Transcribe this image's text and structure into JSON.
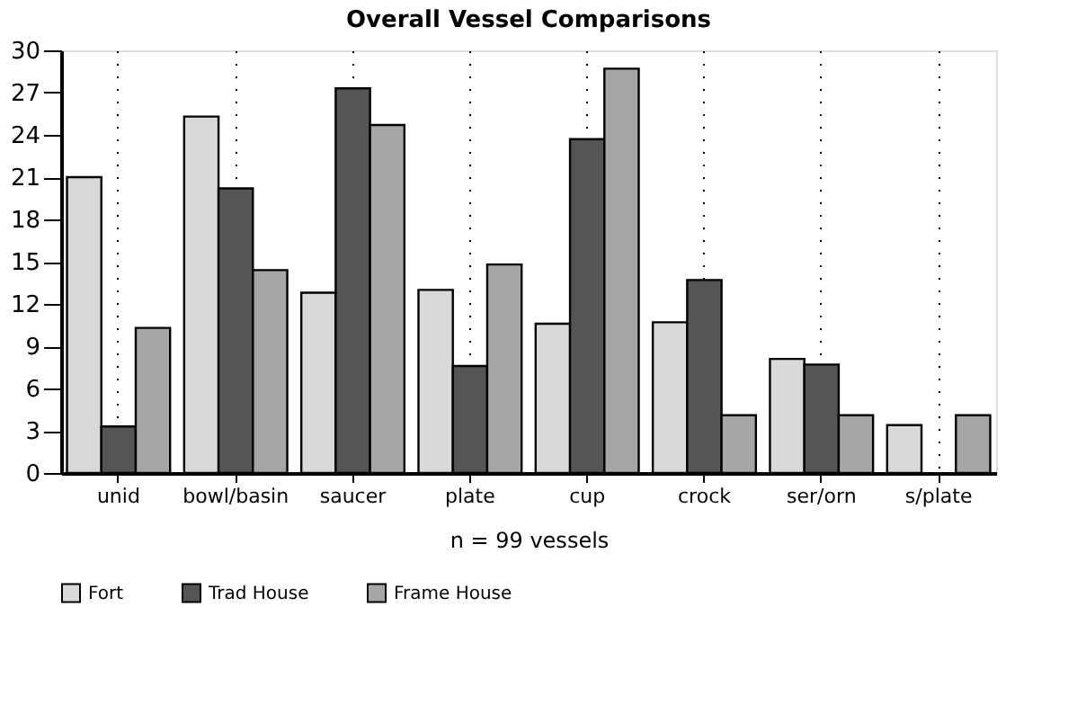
{
  "chart_data": {
    "type": "bar",
    "title": "Overall Vessel Comparisons",
    "categories": [
      "unid",
      "bowl/basin",
      "saucer",
      "plate",
      "cup",
      "crock",
      "ser/orn",
      "s/plate"
    ],
    "series": [
      {
        "name": "Fort",
        "color": "#d9d9d9",
        "values": [
          21,
          25.3,
          12.8,
          13,
          10.6,
          10.7,
          8.1,
          3.4
        ]
      },
      {
        "name": "Trad House",
        "color": "#555555",
        "values": [
          3.3,
          20.2,
          27.3,
          7.6,
          23.7,
          13.7,
          7.7,
          0
        ]
      },
      {
        "name": "Frame House",
        "color": "#a6a6a6",
        "values": [
          10.3,
          14.4,
          24.7,
          14.8,
          28.7,
          4.1,
          4.1,
          4.1
        ]
      }
    ],
    "ylim": [
      0,
      30
    ],
    "yticks": [
      0,
      3,
      6,
      9,
      12,
      15,
      18,
      21,
      24,
      27,
      30
    ],
    "grid": "x",
    "legend": "bottom",
    "annotations": [
      "n = 99 vessels"
    ]
  }
}
